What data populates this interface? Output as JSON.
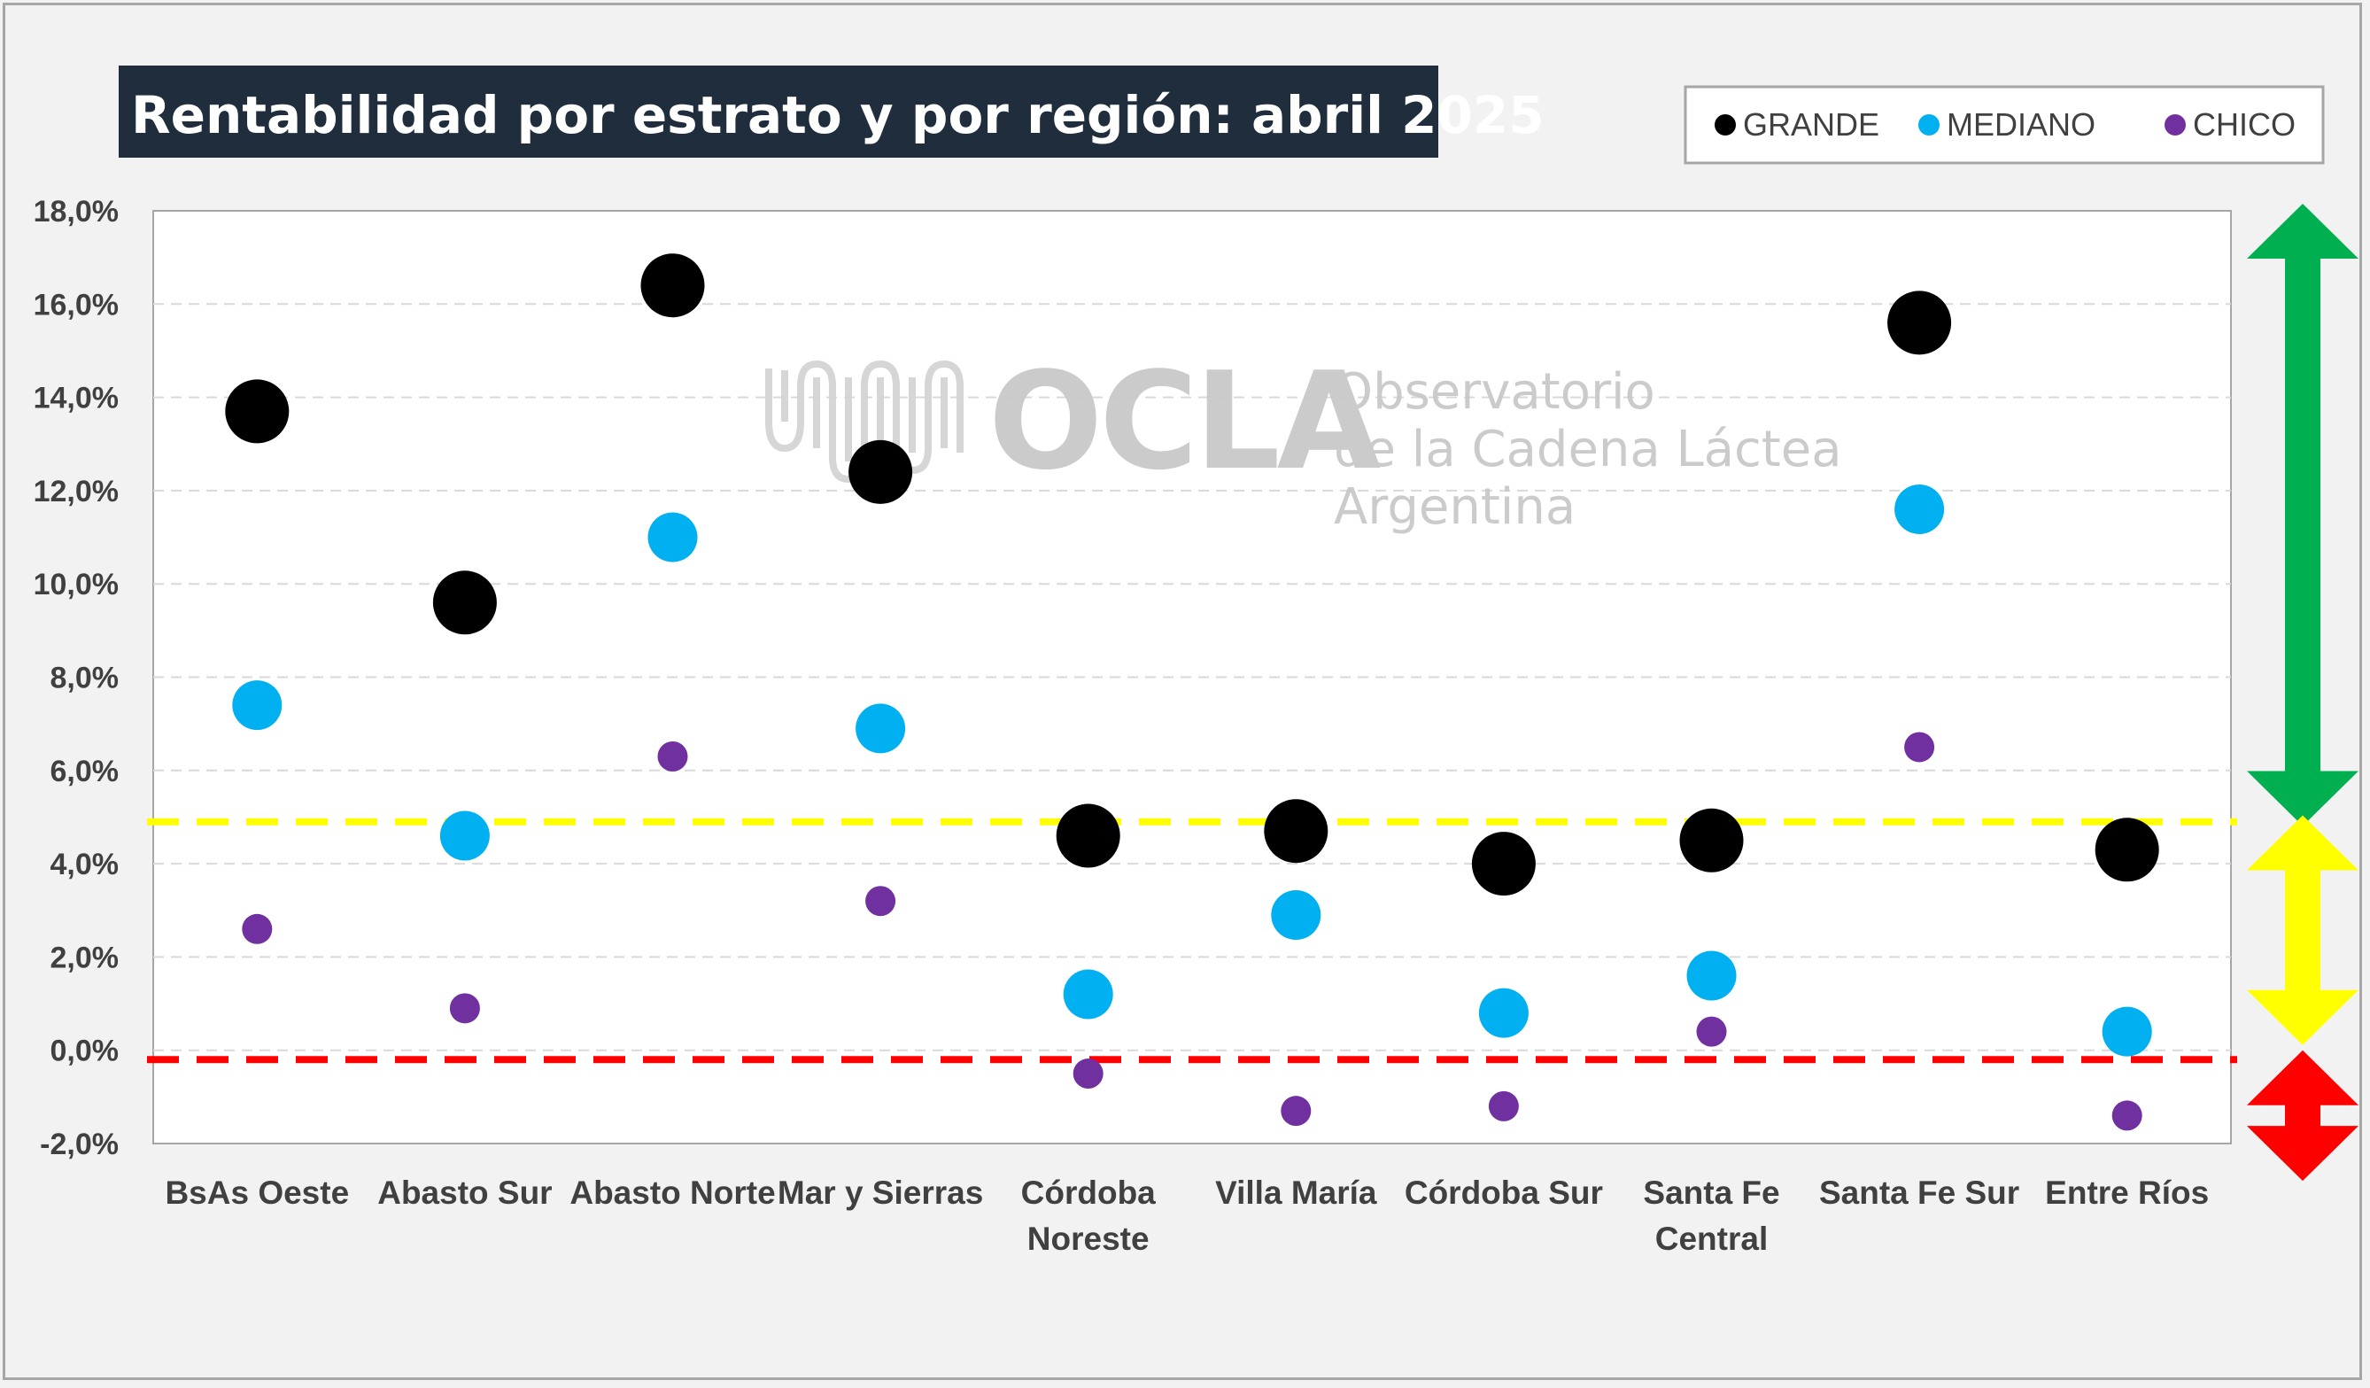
{
  "chart_data": {
    "type": "scatter",
    "title": "Rentabilidad por estrato y por región: abril 2025",
    "xlabel": "",
    "ylabel": "",
    "ylim": [
      -2,
      18
    ],
    "y_ticks": [
      "18,0%",
      "16,0%",
      "14,0%",
      "12,0%",
      "10,0%",
      "8,0%",
      "6,0%",
      "4,0%",
      "2,0%",
      "0,0%",
      "-2,0%"
    ],
    "categories": [
      [
        "BsAs Oeste"
      ],
      [
        "Abasto Sur"
      ],
      [
        "Abasto Norte"
      ],
      [
        "Mar y Sierras"
      ],
      [
        "Córdoba",
        "Noreste"
      ],
      [
        "Villa María"
      ],
      [
        "Córdoba Sur"
      ],
      [
        "Santa Fe",
        "Central"
      ],
      [
        "Santa Fe Sur"
      ],
      [
        "Entre Ríos"
      ]
    ],
    "series": [
      {
        "name": "GRANDE",
        "color": "#000000",
        "values": [
          13.7,
          9.6,
          16.4,
          12.4,
          4.6,
          4.7,
          4.0,
          4.5,
          15.6,
          4.3
        ]
      },
      {
        "name": "MEDIANO",
        "color": "#00b0f0",
        "values": [
          7.4,
          4.6,
          11.0,
          6.9,
          1.2,
          2.9,
          0.8,
          1.6,
          11.6,
          0.4
        ]
      },
      {
        "name": "CHICO",
        "color": "#7030a0",
        "values": [
          2.6,
          0.9,
          6.3,
          3.2,
          -0.5,
          -1.3,
          -1.2,
          0.4,
          6.5,
          -1.4
        ]
      }
    ],
    "reference_lines": [
      {
        "value": 4.9,
        "color": "#ffff00",
        "style": "dashed"
      },
      {
        "value": -0.2,
        "color": "#ff0000",
        "style": "dashed"
      }
    ],
    "side_arrows": [
      {
        "color": "#00b050",
        "from": 5,
        "to": 18
      },
      {
        "color": "#ffff00",
        "from": 0,
        "to": 5
      },
      {
        "color": "#ff0000",
        "from": -2.8,
        "to": 0
      }
    ],
    "grid": true,
    "legend_position": "top-right"
  },
  "watermark": {
    "logo": "OCLA",
    "line1": "Observatorio",
    "line2": "de la Cadena Láctea",
    "line3": "Argentina"
  }
}
